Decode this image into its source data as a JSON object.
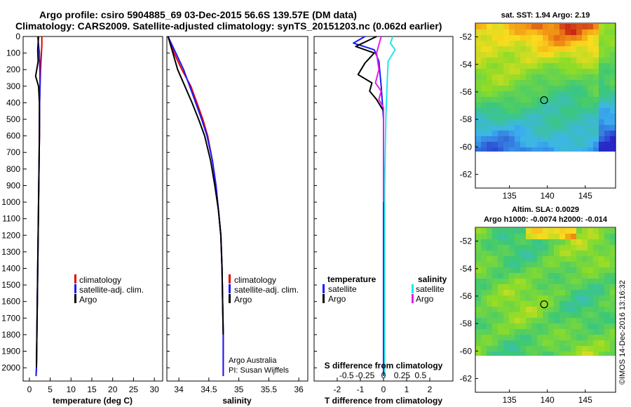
{
  "title_line1": "Argo profile: csiro 5904885_69 03-Dec-2015 56.6S 139.57E (DM data)",
  "title_line2": "Climatology: CARS2009. Satellite-adjusted climatology: synTS_20151203.nc (0.062d earlier)",
  "colors": {
    "climatology": "#e60000",
    "satellite": "#1a1aff",
    "argo": "#000000",
    "sal_satellite": "#22e6e6",
    "sal_argo": "#e61ee6"
  },
  "chart_data": [
    {
      "id": "temperature",
      "type": "line",
      "xlabel": "temperature (deg C)",
      "ylabel": "",
      "xlim": [
        -1.5,
        32
      ],
      "ylim": [
        2080,
        0
      ],
      "xticks": [
        0,
        5,
        10,
        15,
        20,
        25,
        30
      ],
      "xtick_labels": [
        "0",
        "5",
        "10",
        "15",
        "20",
        "25",
        "30"
      ],
      "yticks": [
        0,
        100,
        200,
        300,
        400,
        500,
        600,
        700,
        800,
        900,
        1000,
        1100,
        1200,
        1300,
        1400,
        1500,
        1600,
        1700,
        1800,
        1900,
        2000
      ],
      "ytick_labels": [
        "0",
        "100",
        "200",
        "300",
        "400",
        "500",
        "600",
        "700",
        "800",
        "900",
        "1000",
        "1100",
        "1200",
        "1300",
        "1400",
        "1500",
        "1600",
        "1700",
        "1800",
        "1900",
        "2000"
      ],
      "legend": [
        "climatology",
        "satellite-adj. clim.",
        "Argo"
      ],
      "series": [
        {
          "name": "climatology",
          "color_key": "climatology",
          "x": [
            3.0,
            3.0,
            2.9,
            2.7,
            2.55,
            2.45,
            2.4,
            2.3,
            2.2,
            2.1,
            2.0,
            1.9,
            1.8,
            1.7,
            1.6
          ],
          "y": [
            0,
            50,
            100,
            200,
            300,
            400,
            600,
            800,
            1000,
            1200,
            1400,
            1600,
            1800,
            2000,
            2050
          ]
        },
        {
          "name": "satellite-adj. clim.",
          "color_key": "satellite",
          "x": [
            2.0,
            2.2,
            2.4,
            2.5,
            2.55,
            2.45,
            2.4,
            2.3,
            2.2,
            2.1,
            2.0,
            1.9,
            1.8,
            1.7,
            1.6
          ],
          "y": [
            0,
            50,
            100,
            200,
            300,
            400,
            600,
            800,
            1000,
            1200,
            1400,
            1600,
            1800,
            2000,
            2050
          ]
        },
        {
          "name": "Argo",
          "color_key": "argo",
          "x": [
            2.2,
            2.0,
            2.1,
            1.5,
            2.2,
            2.4,
            2.4,
            2.3,
            2.2,
            2.1,
            2.0,
            1.9,
            1.8,
            1.7
          ],
          "y": [
            0,
            80,
            150,
            240,
            300,
            400,
            600,
            800,
            1000,
            1200,
            1400,
            1600,
            1800,
            2000
          ]
        }
      ]
    },
    {
      "id": "salinity",
      "type": "line",
      "xlabel": "salinity",
      "xlim": [
        33.8,
        36.15
      ],
      "ylim": [
        2080,
        0
      ],
      "xticks": [
        34,
        34.5,
        35,
        35.5,
        36
      ],
      "xtick_labels": [
        "34",
        "34.5",
        "35",
        "35.5",
        "36"
      ],
      "legend": [
        "climatology",
        "satellite-adj. clim.",
        "Argo"
      ],
      "annotation": [
        "Argo Australia",
        "PI: Susan Wijffels"
      ],
      "series": [
        {
          "name": "climatology",
          "color_key": "climatology",
          "x": [
            33.82,
            33.92,
            34.05,
            34.2,
            34.3,
            34.4,
            34.48,
            34.56,
            34.62,
            34.66,
            34.7,
            34.72,
            34.73,
            34.74,
            34.74
          ],
          "y": [
            0,
            100,
            200,
            300,
            400,
            500,
            600,
            750,
            900,
            1050,
            1200,
            1400,
            1600,
            1800,
            2050
          ]
        },
        {
          "name": "satellite-adj. clim.",
          "color_key": "satellite",
          "x": [
            33.82,
            33.95,
            34.08,
            34.18,
            34.28,
            34.38,
            34.47,
            34.56,
            34.62,
            34.66,
            34.7,
            34.72,
            34.73,
            34.74,
            34.74
          ],
          "y": [
            0,
            100,
            200,
            300,
            400,
            500,
            600,
            750,
            900,
            1050,
            1200,
            1400,
            1600,
            1800,
            2050
          ]
        },
        {
          "name": "Argo",
          "color_key": "argo",
          "x": [
            33.82,
            33.9,
            33.98,
            34.1,
            34.22,
            34.33,
            34.43,
            34.53,
            34.6,
            34.66,
            34.7,
            34.72,
            34.73,
            34.74
          ],
          "y": [
            0,
            100,
            200,
            300,
            400,
            500,
            600,
            750,
            900,
            1050,
            1200,
            1400,
            1600,
            1800
          ]
        }
      ]
    },
    {
      "id": "difference",
      "type": "line",
      "xlabel": "T difference from climatology",
      "xlabel_top": "S difference from climatology",
      "xlim": [
        -3.0,
        3.0
      ],
      "ylim": [
        2080,
        0
      ],
      "xticks": [
        -2,
        -1,
        0,
        1,
        2
      ],
      "xtick_labels": [
        "-2",
        "-1",
        "0",
        "1",
        "2"
      ],
      "xticks_top_labels": [
        "-0.5",
        "-0.25",
        "0",
        "0.25",
        "0.5"
      ],
      "legend_left_title": "temperature",
      "legend_right_title": "salinity",
      "legend_left": [
        "satellite",
        "Argo"
      ],
      "legend_right": [
        "satellite",
        "Argo"
      ],
      "series": [
        {
          "name": "T satellite",
          "color_key": "satellite",
          "x": [
            -0.8,
            -1.3,
            -0.4,
            -0.2,
            -0.1,
            0.0,
            0.0,
            0.0,
            0.0
          ],
          "y": [
            0,
            40,
            80,
            150,
            300,
            500,
            900,
            1500,
            2050
          ]
        },
        {
          "name": "T Argo",
          "color_key": "argo",
          "x": [
            -0.3,
            -1.2,
            -0.4,
            -0.8,
            -1.1,
            -0.5,
            -0.6,
            -0.3,
            0.0,
            0.0,
            0.0
          ],
          "y": [
            0,
            60,
            100,
            160,
            230,
            280,
            330,
            380,
            450,
            700,
            1000
          ]
        },
        {
          "name": "S satellite",
          "color_key": "sal_satellite",
          "x": [
            0.4,
            0.3,
            0.5,
            0.2,
            0.15,
            0.1,
            0.05,
            0.05,
            0.05
          ],
          "y": [
            0,
            40,
            80,
            150,
            300,
            500,
            900,
            1500,
            2050
          ]
        },
        {
          "name": "S Argo",
          "color_key": "sal_argo",
          "x": [
            -0.1,
            -0.3,
            -0.2,
            -0.35,
            -0.1,
            -0.2,
            0.0,
            0.0,
            0.0
          ],
          "y": [
            0,
            100,
            200,
            280,
            330,
            380,
            430,
            700,
            1000
          ]
        }
      ]
    },
    {
      "id": "sst_map",
      "type": "heatmap",
      "title": "sat. SST: 1.94 Argo: 2.19",
      "xlim": [
        130.5,
        149
      ],
      "ylim": [
        -63,
        -51
      ],
      "xticks": [
        135,
        140,
        145
      ],
      "yticks": [
        -52,
        -54,
        -56,
        -58,
        -60,
        -62
      ],
      "xtick_labels": [
        "135",
        "140",
        "145"
      ],
      "ytick_labels": [
        "-52",
        "-54",
        "-56",
        "-58",
        "-60",
        "-62"
      ],
      "marker": {
        "lon": 139.57,
        "lat": -56.6
      }
    },
    {
      "id": "sla_map",
      "type": "heatmap",
      "title_line1": "Altim. SLA: 0.0029",
      "title_line2": "Argo h1000: -0.0074 h2000: -0.014",
      "xlim": [
        130.5,
        149
      ],
      "ylim": [
        -63,
        -51
      ],
      "xticks": [
        135,
        140,
        145
      ],
      "yticks": [
        -52,
        -54,
        -56,
        -58,
        -60,
        -62
      ],
      "xtick_labels": [
        "135",
        "140",
        "145"
      ],
      "ytick_labels": [
        "-52",
        "-54",
        "-56",
        "-58",
        "-60",
        "-62"
      ],
      "marker": {
        "lon": 139.57,
        "lat": -56.6
      }
    }
  ],
  "credit": "©IMOS 14-Dec-2016 13:16:32"
}
